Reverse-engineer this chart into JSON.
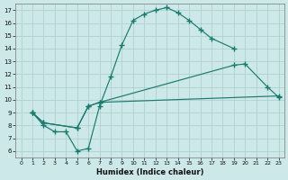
{
  "xlabel": "Humidex (Indice chaleur)",
  "xlim": [
    -0.5,
    23.5
  ],
  "ylim": [
    5.5,
    17.5
  ],
  "xticks": [
    0,
    1,
    2,
    3,
    4,
    5,
    6,
    7,
    8,
    9,
    10,
    11,
    12,
    13,
    14,
    15,
    16,
    17,
    18,
    19,
    20,
    21,
    22,
    23
  ],
  "yticks": [
    6,
    7,
    8,
    9,
    10,
    11,
    12,
    13,
    14,
    15,
    16,
    17
  ],
  "line_color": "#1a7a6e",
  "bg_color": "#cce8e8",
  "grid_color": "#aacccc",
  "lines": [
    {
      "x": [
        1,
        2,
        3,
        4,
        5,
        6,
        7,
        8,
        9,
        10,
        11,
        12,
        13,
        14,
        15,
        16,
        17,
        19
      ],
      "y": [
        9,
        8,
        7.5,
        7.5,
        6,
        6.2,
        9.5,
        11.8,
        14.3,
        16.2,
        16.7,
        17.0,
        17.2,
        16.8,
        16.2,
        15.5,
        14.8,
        14.0
      ]
    },
    {
      "x": [
        1,
        2,
        5,
        6,
        7,
        19,
        20,
        22,
        23
      ],
      "y": [
        9,
        8.2,
        7.8,
        9.5,
        9.8,
        12.7,
        12.8,
        11.0,
        10.2
      ]
    },
    {
      "x": [
        1,
        2,
        5,
        6,
        7,
        23
      ],
      "y": [
        9,
        8.2,
        7.8,
        9.5,
        9.8,
        10.3
      ]
    }
  ]
}
